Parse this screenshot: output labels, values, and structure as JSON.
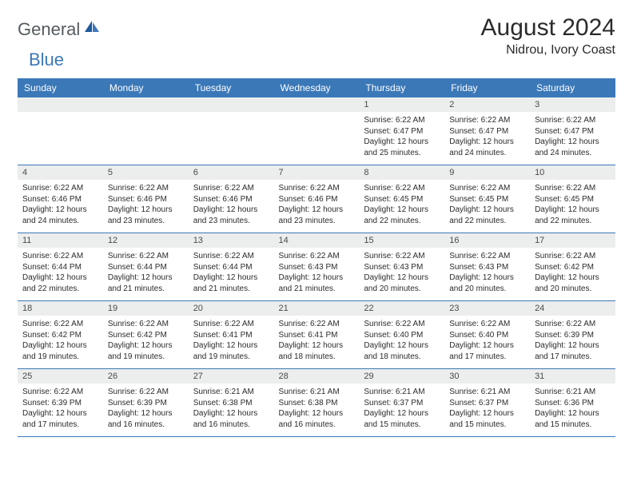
{
  "logo": {
    "general": "General",
    "blue": "Blue"
  },
  "header": {
    "month": "August 2024",
    "location": "Nidrou, Ivory Coast"
  },
  "colors": {
    "header_bg": "#3b78b8",
    "header_text": "#ffffff",
    "daynum_bg": "#eceded",
    "border": "#3b78b8",
    "text": "#2b2b2b",
    "logo_gray": "#555b60",
    "logo_blue": "#3b78b8"
  },
  "day_headers": [
    "Sunday",
    "Monday",
    "Tuesday",
    "Wednesday",
    "Thursday",
    "Friday",
    "Saturday"
  ],
  "weeks": [
    [
      {
        "empty": true
      },
      {
        "empty": true
      },
      {
        "empty": true
      },
      {
        "empty": true
      },
      {
        "n": "1",
        "sunrise": "6:22 AM",
        "sunset": "6:47 PM",
        "daylight": "12 hours and 25 minutes."
      },
      {
        "n": "2",
        "sunrise": "6:22 AM",
        "sunset": "6:47 PM",
        "daylight": "12 hours and 24 minutes."
      },
      {
        "n": "3",
        "sunrise": "6:22 AM",
        "sunset": "6:47 PM",
        "daylight": "12 hours and 24 minutes."
      }
    ],
    [
      {
        "n": "4",
        "sunrise": "6:22 AM",
        "sunset": "6:46 PM",
        "daylight": "12 hours and 24 minutes."
      },
      {
        "n": "5",
        "sunrise": "6:22 AM",
        "sunset": "6:46 PM",
        "daylight": "12 hours and 23 minutes."
      },
      {
        "n": "6",
        "sunrise": "6:22 AM",
        "sunset": "6:46 PM",
        "daylight": "12 hours and 23 minutes."
      },
      {
        "n": "7",
        "sunrise": "6:22 AM",
        "sunset": "6:46 PM",
        "daylight": "12 hours and 23 minutes."
      },
      {
        "n": "8",
        "sunrise": "6:22 AM",
        "sunset": "6:45 PM",
        "daylight": "12 hours and 22 minutes."
      },
      {
        "n": "9",
        "sunrise": "6:22 AM",
        "sunset": "6:45 PM",
        "daylight": "12 hours and 22 minutes."
      },
      {
        "n": "10",
        "sunrise": "6:22 AM",
        "sunset": "6:45 PM",
        "daylight": "12 hours and 22 minutes."
      }
    ],
    [
      {
        "n": "11",
        "sunrise": "6:22 AM",
        "sunset": "6:44 PM",
        "daylight": "12 hours and 22 minutes."
      },
      {
        "n": "12",
        "sunrise": "6:22 AM",
        "sunset": "6:44 PM",
        "daylight": "12 hours and 21 minutes."
      },
      {
        "n": "13",
        "sunrise": "6:22 AM",
        "sunset": "6:44 PM",
        "daylight": "12 hours and 21 minutes."
      },
      {
        "n": "14",
        "sunrise": "6:22 AM",
        "sunset": "6:43 PM",
        "daylight": "12 hours and 21 minutes."
      },
      {
        "n": "15",
        "sunrise": "6:22 AM",
        "sunset": "6:43 PM",
        "daylight": "12 hours and 20 minutes."
      },
      {
        "n": "16",
        "sunrise": "6:22 AM",
        "sunset": "6:43 PM",
        "daylight": "12 hours and 20 minutes."
      },
      {
        "n": "17",
        "sunrise": "6:22 AM",
        "sunset": "6:42 PM",
        "daylight": "12 hours and 20 minutes."
      }
    ],
    [
      {
        "n": "18",
        "sunrise": "6:22 AM",
        "sunset": "6:42 PM",
        "daylight": "12 hours and 19 minutes."
      },
      {
        "n": "19",
        "sunrise": "6:22 AM",
        "sunset": "6:42 PM",
        "daylight": "12 hours and 19 minutes."
      },
      {
        "n": "20",
        "sunrise": "6:22 AM",
        "sunset": "6:41 PM",
        "daylight": "12 hours and 19 minutes."
      },
      {
        "n": "21",
        "sunrise": "6:22 AM",
        "sunset": "6:41 PM",
        "daylight": "12 hours and 18 minutes."
      },
      {
        "n": "22",
        "sunrise": "6:22 AM",
        "sunset": "6:40 PM",
        "daylight": "12 hours and 18 minutes."
      },
      {
        "n": "23",
        "sunrise": "6:22 AM",
        "sunset": "6:40 PM",
        "daylight": "12 hours and 17 minutes."
      },
      {
        "n": "24",
        "sunrise": "6:22 AM",
        "sunset": "6:39 PM",
        "daylight": "12 hours and 17 minutes."
      }
    ],
    [
      {
        "n": "25",
        "sunrise": "6:22 AM",
        "sunset": "6:39 PM",
        "daylight": "12 hours and 17 minutes."
      },
      {
        "n": "26",
        "sunrise": "6:22 AM",
        "sunset": "6:39 PM",
        "daylight": "12 hours and 16 minutes."
      },
      {
        "n": "27",
        "sunrise": "6:21 AM",
        "sunset": "6:38 PM",
        "daylight": "12 hours and 16 minutes."
      },
      {
        "n": "28",
        "sunrise": "6:21 AM",
        "sunset": "6:38 PM",
        "daylight": "12 hours and 16 minutes."
      },
      {
        "n": "29",
        "sunrise": "6:21 AM",
        "sunset": "6:37 PM",
        "daylight": "12 hours and 15 minutes."
      },
      {
        "n": "30",
        "sunrise": "6:21 AM",
        "sunset": "6:37 PM",
        "daylight": "12 hours and 15 minutes."
      },
      {
        "n": "31",
        "sunrise": "6:21 AM",
        "sunset": "6:36 PM",
        "daylight": "12 hours and 15 minutes."
      }
    ]
  ],
  "labels": {
    "sunrise": "Sunrise:",
    "sunset": "Sunset:",
    "daylight": "Daylight:"
  }
}
